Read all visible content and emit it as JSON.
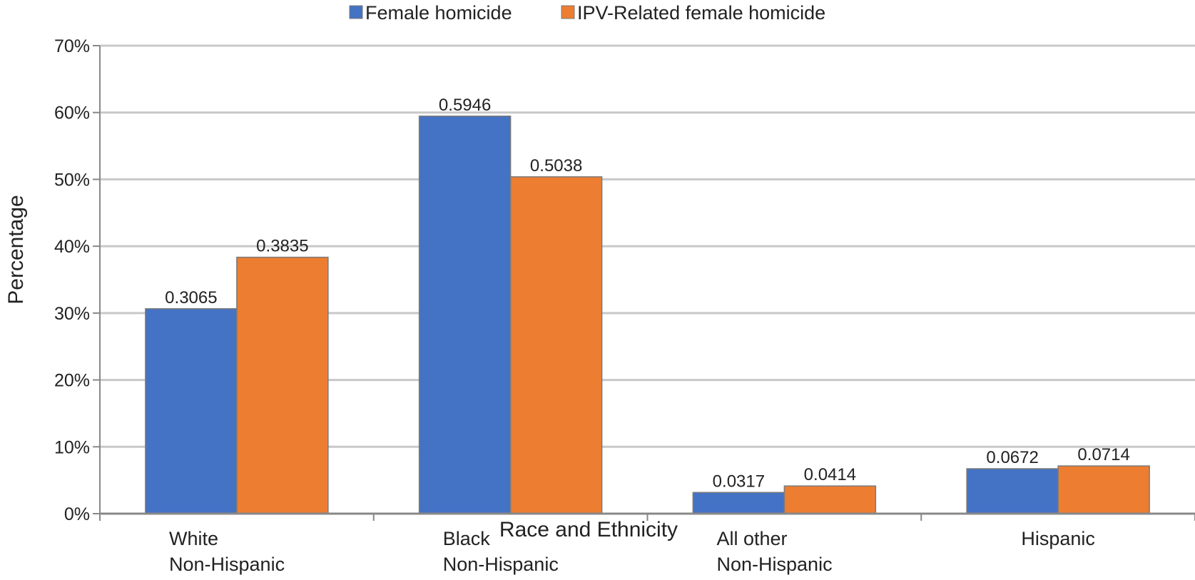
{
  "chart_data": {
    "type": "bar",
    "title": "",
    "xlabel": "Race and Ethnicity",
    "ylabel": "Percentage",
    "ylim": [
      0,
      0.7
    ],
    "yticks": [
      0,
      0.1,
      0.2,
      0.3,
      0.4,
      0.5,
      0.6,
      0.7
    ],
    "ytick_labels": [
      "0%",
      "10%",
      "20%",
      "30%",
      "40%",
      "50%",
      "60%",
      "70%"
    ],
    "grid": true,
    "legend_position": "top",
    "categories": [
      [
        "White",
        "Non-Hispanic"
      ],
      [
        "Black",
        "Non-Hispanic"
      ],
      [
        "All other",
        "Non-Hispanic"
      ],
      [
        "Hispanic"
      ]
    ],
    "series": [
      {
        "name": "Female homicide",
        "color": "#4472C4",
        "values": [
          0.3065,
          0.5946,
          0.0317,
          0.0672
        ],
        "labels": [
          "0.3065",
          "0.5946",
          "0.0317",
          "0.0672"
        ]
      },
      {
        "name": "IPV-Related female homicide",
        "color": "#ED7D31",
        "values": [
          0.3835,
          0.5038,
          0.0414,
          0.0714
        ],
        "labels": [
          "0.3835",
          "0.5038",
          "0.0414",
          "0.0714"
        ]
      }
    ]
  }
}
